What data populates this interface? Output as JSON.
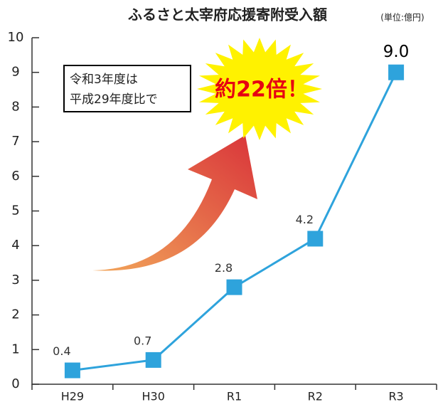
{
  "chart_data": {
    "type": "line",
    "title": "ふるさと太宰府応援寄附受入額",
    "subtitle": "(単位:億円)",
    "categories": [
      "H29",
      "H30",
      "R1",
      "R2",
      "R3"
    ],
    "values": [
      0.4,
      0.7,
      2.8,
      4.2,
      9
    ],
    "value_labels": [
      "0.4",
      "0.7",
      "2.8",
      "4.2",
      "9.0"
    ],
    "color": "#2ea3dc",
    "ylim": [
      0,
      10
    ],
    "yticks": [
      0,
      1,
      2,
      3,
      4,
      5,
      6,
      7,
      8,
      9,
      10
    ],
    "annotations": {
      "box": [
        "令和3年度は",
        "平成29年度比で"
      ],
      "burst": "約22倍！"
    }
  }
}
